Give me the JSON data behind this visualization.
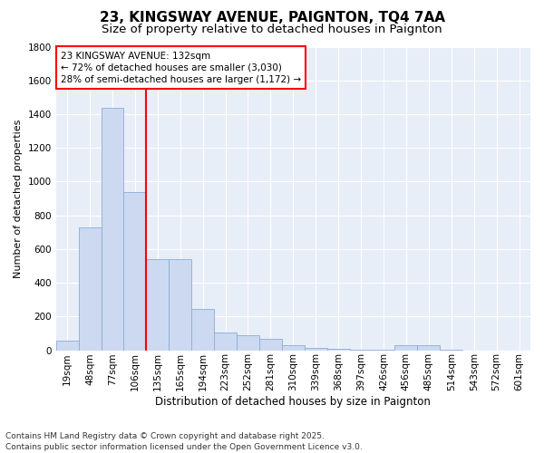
{
  "title": "23, KINGSWAY AVENUE, PAIGNTON, TQ4 7AA",
  "subtitle": "Size of property relative to detached houses in Paignton",
  "xlabel": "Distribution of detached houses by size in Paignton",
  "ylabel": "Number of detached properties",
  "categories": [
    "19sqm",
    "48sqm",
    "77sqm",
    "106sqm",
    "135sqm",
    "165sqm",
    "194sqm",
    "223sqm",
    "252sqm",
    "281sqm",
    "310sqm",
    "339sqm",
    "368sqm",
    "397sqm",
    "426sqm",
    "456sqm",
    "485sqm",
    "514sqm",
    "543sqm",
    "572sqm",
    "601sqm"
  ],
  "values": [
    55,
    730,
    1435,
    940,
    540,
    540,
    245,
    105,
    90,
    65,
    30,
    15,
    10,
    5,
    5,
    30,
    30,
    5,
    0,
    0,
    0
  ],
  "bar_color": "#ccd9f0",
  "bar_edge_color": "#8aadd4",
  "background_color": "#e8eef8",
  "grid_color": "#ffffff",
  "annotation_box_text": "23 KINGSWAY AVENUE: 132sqm\n← 72% of detached houses are smaller (3,030)\n28% of semi-detached houses are larger (1,172) →",
  "annotation_box_edgecolor": "red",
  "vline_color": "red",
  "vline_pos": 3.5,
  "ylim": [
    0,
    1800
  ],
  "yticks": [
    0,
    200,
    400,
    600,
    800,
    1000,
    1200,
    1400,
    1600,
    1800
  ],
  "footer": "Contains HM Land Registry data © Crown copyright and database right 2025.\nContains public sector information licensed under the Open Government Licence v3.0.",
  "title_fontsize": 11,
  "subtitle_fontsize": 9.5,
  "xlabel_fontsize": 8.5,
  "ylabel_fontsize": 8,
  "tick_fontsize": 7.5,
  "annot_fontsize": 7.5,
  "footer_fontsize": 6.5
}
